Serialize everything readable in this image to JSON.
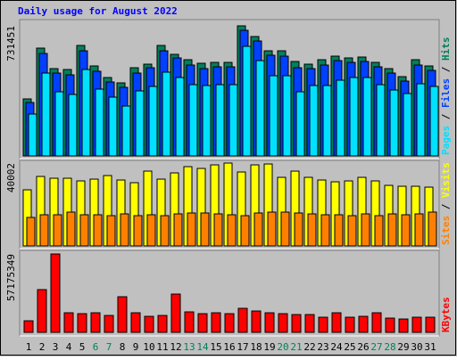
{
  "title": "Daily usage for August 2022",
  "categories": [
    "1",
    "2",
    "3",
    "4",
    "5",
    "6",
    "7",
    "8",
    "9",
    "10",
    "11",
    "12",
    "13",
    "14",
    "15",
    "16",
    "17",
    "18",
    "19",
    "20",
    "21",
    "22",
    "23",
    "24",
    "25",
    "26",
    "27",
    "28",
    "29",
    "30",
    "31"
  ],
  "category_colors": [
    "#000000",
    "#000000",
    "#000000",
    "#000000",
    "#000000",
    "#00805c",
    "#00805c",
    "#000000",
    "#000000",
    "#000000",
    "#000000",
    "#000000",
    "#00805c",
    "#00805c",
    "#000000",
    "#000000",
    "#000000",
    "#000000",
    "#000000",
    "#00805c",
    "#00805c",
    "#000000",
    "#000000",
    "#000000",
    "#000000",
    "#000000",
    "#00805c",
    "#00805c",
    "#000000",
    "#000000",
    "#000000"
  ],
  "legend_separator": " / ",
  "chart_data": [
    {
      "type": "bar",
      "ylim": [
        0,
        731451
      ],
      "yticks": [
        731451
      ],
      "series": [
        {
          "name": "Hits",
          "color": "#00805c",
          "values": [
            320640,
            606210,
            490980,
            485970,
            621240,
            506010,
            440880,
            410820,
            495990,
            516030,
            621240,
            571140,
            541080,
            521040,
            526050,
            526050,
            731451,
            671340,
            591180,
            591180,
            531060,
            516030,
            541080,
            561120,
            551100,
            556110,
            526050,
            490980,
            445890,
            541080,
            506010
          ]
        },
        {
          "name": "Files",
          "color": "#0040ff",
          "values": [
            300600,
            576150,
            465930,
            455910,
            591180,
            475950,
            415830,
            385770,
            465930,
            495990,
            591180,
            551100,
            511020,
            490980,
            501000,
            501000,
            706410,
            646290,
            566130,
            561120,
            495990,
            490980,
            511020,
            536070,
            526050,
            531060,
            501000,
            465930,
            420840,
            511020,
            480960
          ]
        },
        {
          "name": "Pages",
          "color": "#00e0ff",
          "values": [
            235470,
            465930,
            360720,
            345690,
            485970,
            375750,
            330660,
            280560,
            365730,
            390780,
            470940,
            440880,
            400800,
            395790,
            400800,
            400800,
            616230,
            536070,
            450900,
            450900,
            360720,
            395790,
            395790,
            425850,
            440880,
            440880,
            400800,
            370740,
            350700,
            405810,
            390780
          ]
        }
      ]
    },
    {
      "type": "bar",
      "ylim": [
        0,
        40002
      ],
      "yticks": [
        40002
      ],
      "series": [
        {
          "name": "Visits",
          "color": "#ffff00",
          "values": [
            27090,
            33540,
            32680,
            32680,
            31390,
            32250,
            33970,
            31820,
            30530,
            36120,
            32250,
            35260,
            38270,
            37410,
            39130,
            40002,
            35690,
            39130,
            39560,
            33110,
            36120,
            33110,
            31820,
            30960,
            31390,
            33110,
            31390,
            29240,
            28810,
            28810,
            28380
          ]
        },
        {
          "name": "Sites",
          "color": "#ff8000",
          "values": [
            13760,
            15050,
            15050,
            16340,
            15050,
            15050,
            14620,
            15480,
            14620,
            15050,
            14620,
            15480,
            15910,
            15910,
            15480,
            15050,
            14620,
            15910,
            16340,
            16340,
            15910,
            15480,
            15050,
            15050,
            14620,
            15480,
            14620,
            15480,
            15050,
            15480,
            16340
          ]
        }
      ]
    },
    {
      "type": "bar",
      "ylim": [
        0,
        57175349
      ],
      "yticks": [
        57175349
      ],
      "series": [
        {
          "name": "KBytes",
          "color": "#ff0000",
          "values": [
            8446360,
            31186560,
            57175349,
            14293840,
            13644120,
            14293840,
            12344680,
            25988800,
            14293840,
            11694960,
            12344680,
            27937960,
            14943560,
            13644120,
            14293840,
            13644120,
            17542440,
            15593280,
            14293840,
            13644120,
            12994400,
            12994400,
            11045240,
            14293840,
            11045240,
            11694960,
            14293840,
            10395520,
            9745800,
            11045240,
            11045240
          ]
        }
      ]
    }
  ]
}
